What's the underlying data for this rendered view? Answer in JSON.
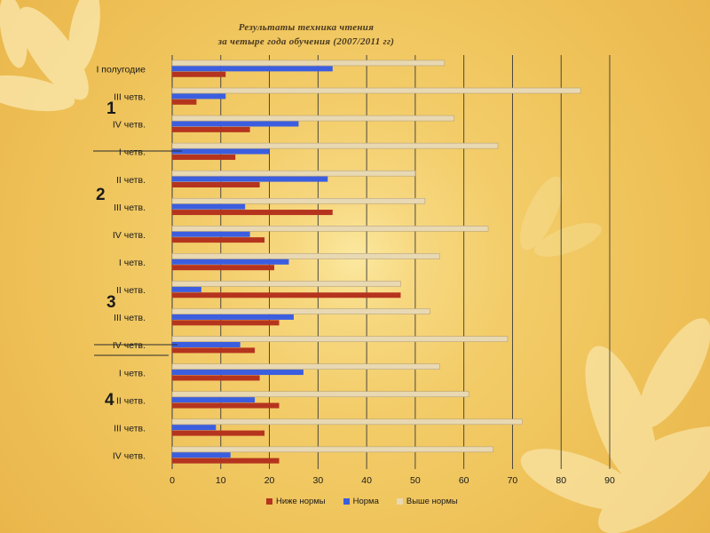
{
  "colors": {
    "below": "#b5341e",
    "norm": "#3b5ee0",
    "above": "#e8d9b3"
  },
  "year_labels": [
    "1",
    "2",
    "3",
    "4"
  ],
  "chart_data": {
    "type": "bar",
    "orientation": "horizontal",
    "title": "Результаты техника чтения",
    "subtitle": "за четыре года обучения      (2007/2011 гг)",
    "categories": [
      "I полугодие",
      "III четв.",
      "IV четв.",
      "I четв.",
      "II четв.",
      "III четв.",
      "IV четв.",
      "I четв.",
      "II четв.",
      "III четв.",
      "IV четв.",
      "I четв.",
      "II четв.",
      "III четв.",
      "IV четв."
    ],
    "series": [
      {
        "name": "Ниже нормы",
        "values": [
          11,
          5,
          16,
          13,
          18,
          33,
          19,
          21,
          47,
          22,
          17,
          18,
          22,
          19,
          22
        ]
      },
      {
        "name": "Норма",
        "values": [
          33,
          11,
          26,
          20,
          32,
          15,
          16,
          24,
          6,
          25,
          14,
          27,
          17,
          9,
          12
        ]
      },
      {
        "name": "Выше нормы",
        "values": [
          56,
          84,
          58,
          67,
          50,
          52,
          65,
          55,
          47,
          53,
          69,
          55,
          61,
          72,
          66
        ]
      }
    ],
    "xticks": [
      "0",
      "10",
      "20",
      "30",
      "40",
      "50",
      "60",
      "70",
      "80",
      "90"
    ],
    "xlim": [
      0,
      90
    ],
    "grid": true,
    "legend_position": "bottom"
  }
}
